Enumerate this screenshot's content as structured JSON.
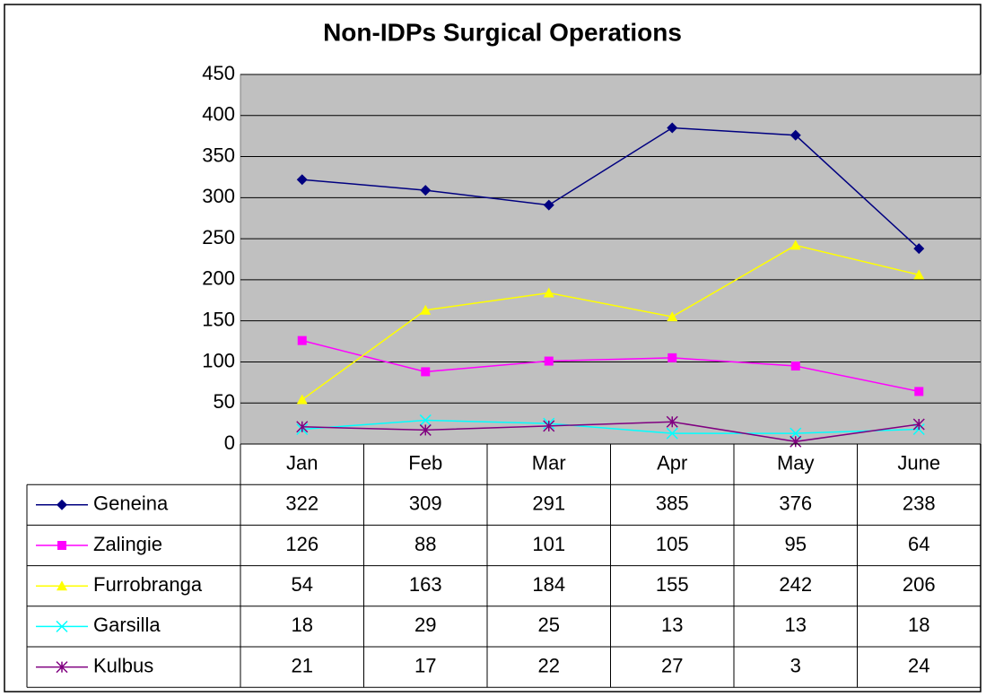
{
  "chart_data": {
    "type": "line",
    "title": "Non-IDPs Surgical Operations",
    "categories": [
      "Jan",
      "Feb",
      "Mar",
      "Apr",
      "May",
      "June"
    ],
    "series": [
      {
        "name": "Geneina",
        "color": "#000080",
        "marker": "diamond",
        "values": [
          322,
          309,
          291,
          385,
          376,
          238
        ]
      },
      {
        "name": "Zalingie",
        "color": "#ff00ff",
        "marker": "square",
        "values": [
          126,
          88,
          101,
          105,
          95,
          64
        ]
      },
      {
        "name": "Furrobranga",
        "color": "#ffff00",
        "marker": "triangle",
        "values": [
          54,
          163,
          184,
          155,
          242,
          206
        ]
      },
      {
        "name": "Garsilla",
        "color": "#00ffff",
        "marker": "x",
        "values": [
          18,
          29,
          25,
          13,
          13,
          18
        ]
      },
      {
        "name": "Kulbus",
        "color": "#800080",
        "marker": "star",
        "values": [
          21,
          17,
          22,
          27,
          3,
          24
        ]
      }
    ],
    "ylim": [
      0,
      450
    ],
    "yticks": [
      0,
      50,
      100,
      150,
      200,
      250,
      300,
      350,
      400,
      450
    ],
    "grid": true,
    "plot_background": "#c0c0c0",
    "data_table": true
  }
}
